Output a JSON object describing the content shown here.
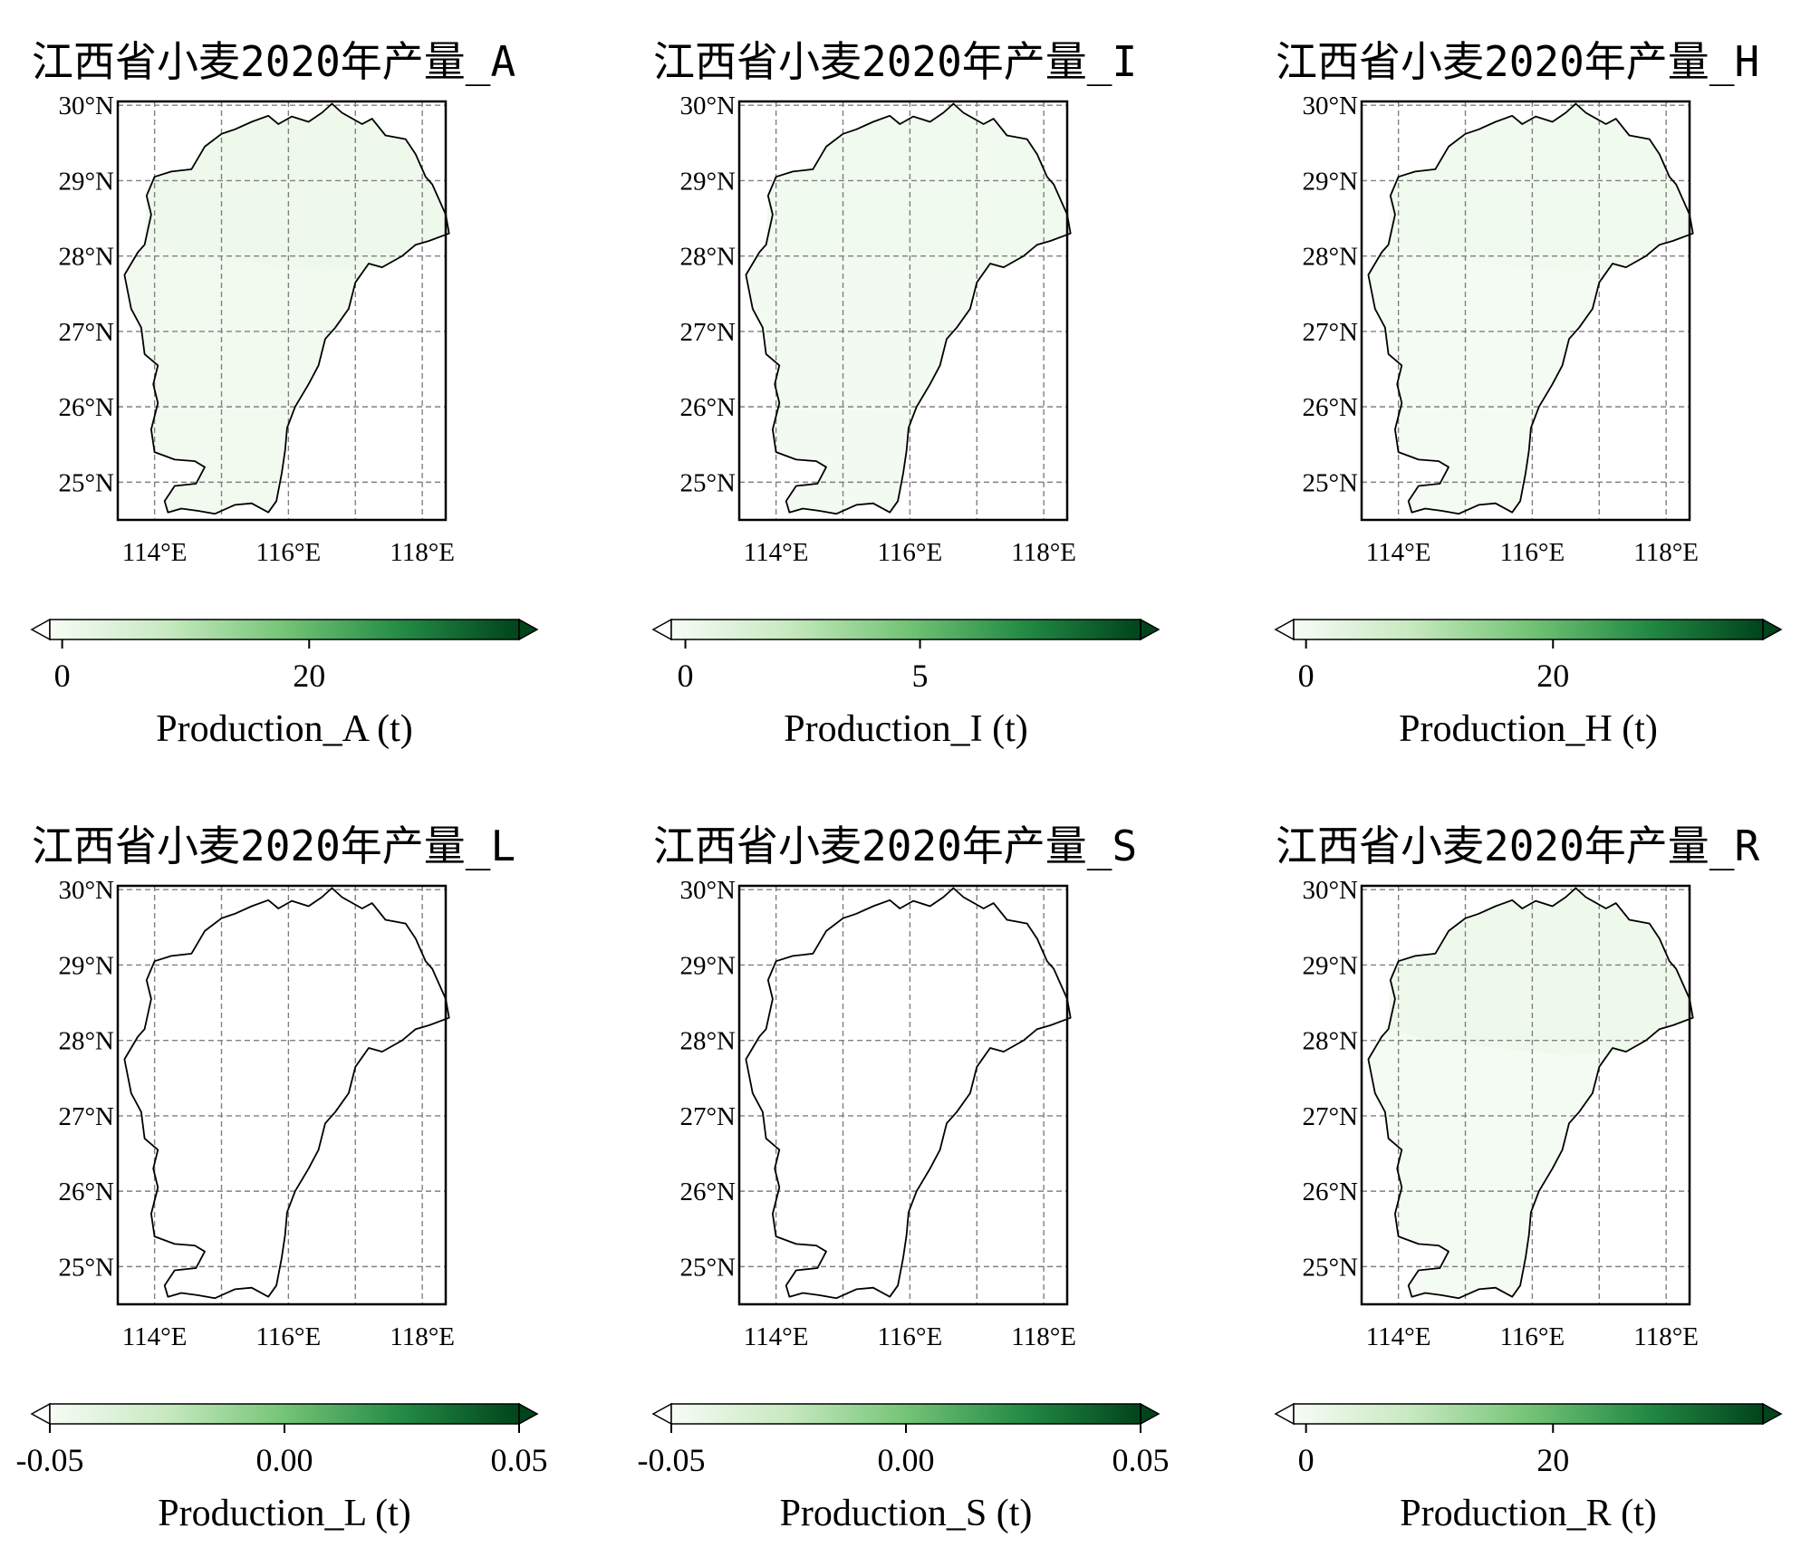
{
  "figure": {
    "map_extent": {
      "lon": [
        113.45,
        118.35
      ],
      "lat": [
        24.5,
        30.05
      ]
    },
    "gridlines": {
      "lon": [
        114,
        115,
        116,
        117,
        118
      ],
      "lat": [
        25,
        26,
        27,
        28,
        29,
        30
      ]
    },
    "lon_tick_values": [
      114,
      116,
      118
    ],
    "lat_tick_values": [
      25,
      26,
      27,
      28,
      29,
      30
    ],
    "lon_tick_labels": [
      "114°E",
      "116°E",
      "118°E"
    ],
    "lat_tick_labels": [
      "25°N",
      "26°N",
      "27°N",
      "28°N",
      "29°N",
      "30°N"
    ],
    "colormap": {
      "name": "Greens",
      "start": "#f7fcf5",
      "mid": "#74c476",
      "end": "#00441b"
    },
    "boundary_color": "#000000",
    "grid_color": "#808080"
  },
  "panels": [
    {
      "title": "江西省小麦2020年产量_A",
      "colorbar": {
        "label": "Production_A (t)",
        "vmin": -1,
        "vmax": 37,
        "ticks": [
          0,
          20
        ],
        "tick_labels": [
          "0",
          "20"
        ]
      },
      "fill": {
        "main": 0.02,
        "north": 0.04
      }
    },
    {
      "title": "江西省小麦2020年产量_I",
      "colorbar": {
        "label": "Production_I (t)",
        "vmin": -0.3,
        "vmax": 9.7,
        "ticks": [
          0,
          5
        ],
        "tick_labels": [
          "0",
          "5"
        ]
      },
      "fill": {
        "main": 0.015,
        "north": 0.03
      }
    },
    {
      "title": "江西省小麦2020年产量_H",
      "colorbar": {
        "label": "Production_H (t)",
        "vmin": -1,
        "vmax": 37,
        "ticks": [
          0,
          20
        ],
        "tick_labels": [
          "0",
          "20"
        ]
      },
      "fill": {
        "main": 0.01,
        "north": 0.03
      }
    },
    {
      "title": "江西省小麦2020年产量_L",
      "colorbar": {
        "label": "Production_L (t)",
        "vmin": -0.05,
        "vmax": 0.05,
        "ticks": [
          -0.05,
          0.0,
          0.05
        ],
        "tick_labels": [
          "-0.05",
          "0.00",
          "0.05"
        ]
      },
      "fill": {
        "main": 0,
        "north": 0
      }
    },
    {
      "title": "江西省小麦2020年产量_S",
      "colorbar": {
        "label": "Production_S (t)",
        "vmin": -0.05,
        "vmax": 0.05,
        "ticks": [
          -0.05,
          0.0,
          0.05
        ],
        "tick_labels": [
          "-0.05",
          "0.00",
          "0.05"
        ]
      },
      "fill": {
        "main": 0,
        "north": 0
      }
    },
    {
      "title": "江西省小麦2020年产量_R",
      "colorbar": {
        "label": "Production_R (t)",
        "vmin": -1,
        "vmax": 37,
        "ticks": [
          0,
          20
        ],
        "tick_labels": [
          "0",
          "20"
        ]
      },
      "fill": {
        "main": 0.01,
        "north": 0.04
      }
    }
  ]
}
